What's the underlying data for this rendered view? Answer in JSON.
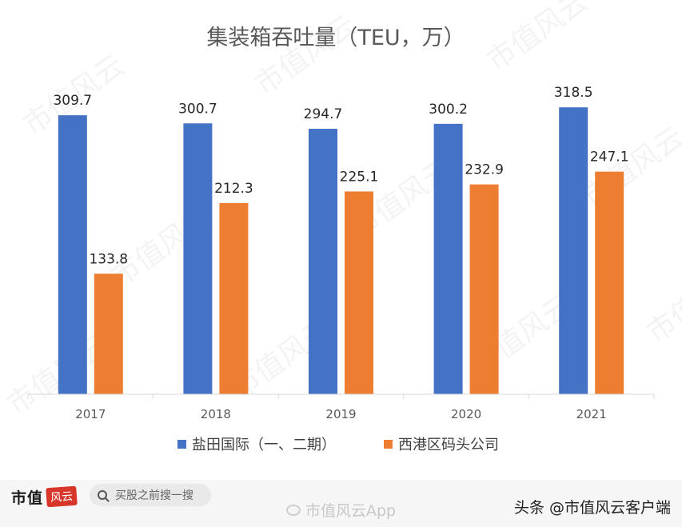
{
  "chart_data": {
    "type": "bar",
    "title": "集装箱吞吐量（TEU，万）",
    "categories": [
      "2017",
      "2018",
      "2019",
      "2020",
      "2021"
    ],
    "series": [
      {
        "name": "盐田国际（一、二期）",
        "values": [
          309.7,
          300.7,
          294.7,
          300.2,
          318.5
        ],
        "color": "#4472c4"
      },
      {
        "name": "西港区码头公司",
        "values": [
          133.8,
          212.3,
          225.1,
          232.9,
          247.1
        ],
        "color": "#ed7d31"
      }
    ],
    "value_labels": {
      "s0": [
        "309.7",
        "300.7",
        "294.7",
        "300.2",
        "318.5"
      ],
      "s1": [
        "133.8",
        "212.3",
        "225.1",
        "232.9",
        "247.1"
      ]
    },
    "ylim": [
      0,
      340
    ],
    "grid": false,
    "legend": "bottom-center"
  },
  "watermark": {
    "text": "市值风云"
  },
  "footer": {
    "brand_text": "市值",
    "brand_seal": "风云",
    "search_placeholder": "买股之前搜一搜",
    "weibo_watermark": "市值风云App",
    "source_credit": "头条 @市值风云客户端"
  }
}
